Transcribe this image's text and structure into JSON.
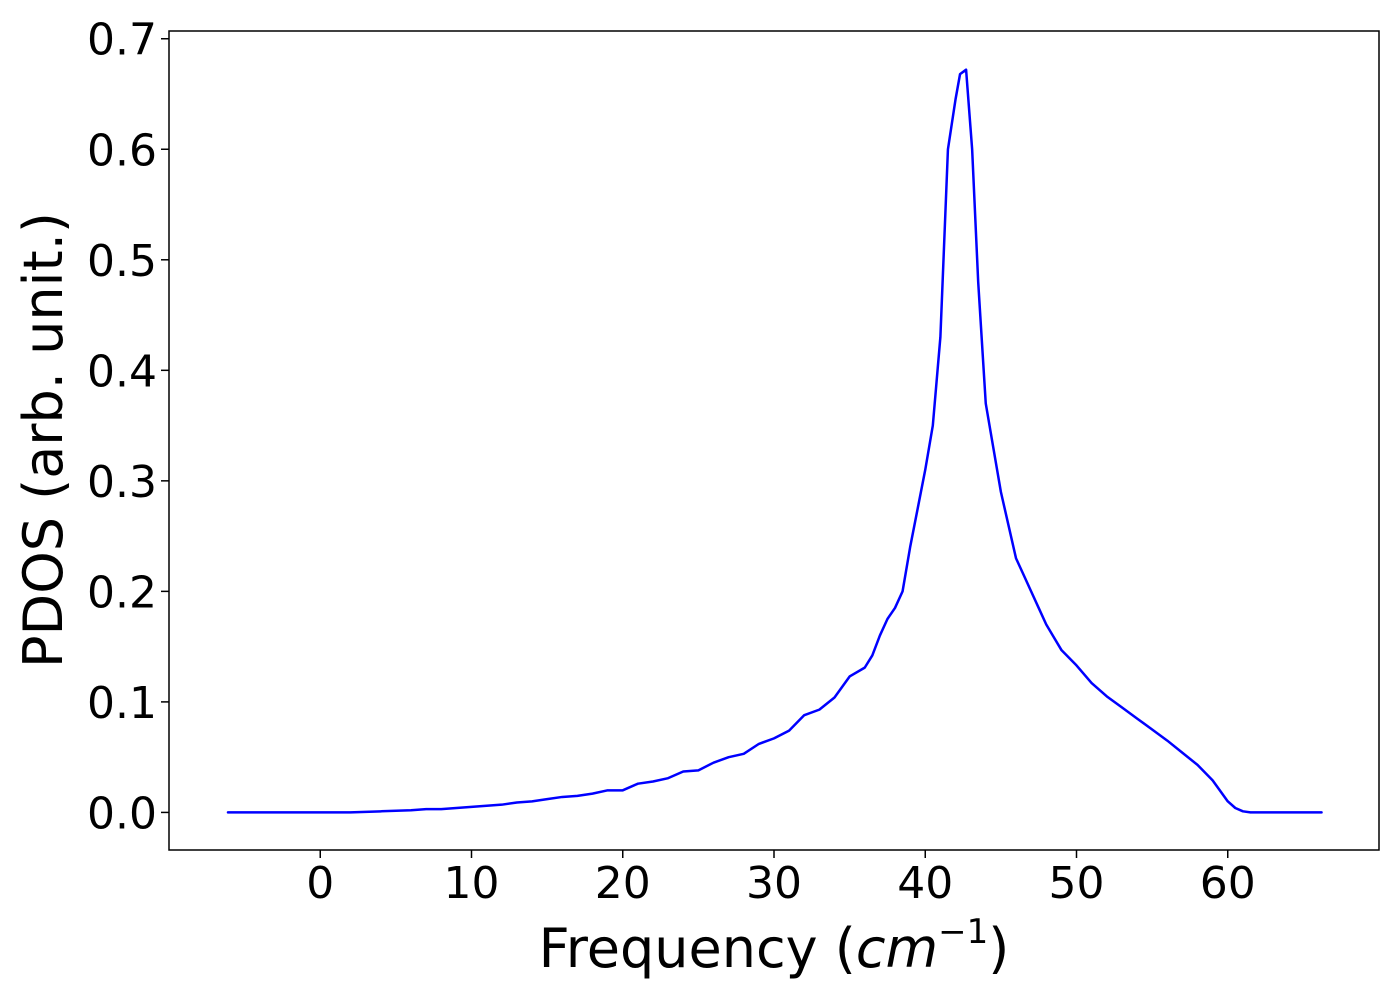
{
  "chart_data": {
    "type": "line",
    "title": "",
    "xlabel_main": "Frequency (",
    "xlabel_math": "cm",
    "xlabel_sup": "−1",
    "xlabel_close": ")",
    "ylabel": "PDOS (arb. unit.)",
    "xlim": [
      -10,
      70
    ],
    "ylim": [
      -0.034,
      0.707
    ],
    "xticks": [
      0,
      10,
      20,
      30,
      40,
      50,
      60
    ],
    "xtick_labels": [
      "0",
      "10",
      "20",
      "30",
      "40",
      "50",
      "60"
    ],
    "yticks": [
      0.0,
      0.1,
      0.2,
      0.3,
      0.4,
      0.5,
      0.6,
      0.7
    ],
    "ytick_labels": [
      "0.0",
      "0.1",
      "0.2",
      "0.3",
      "0.4",
      "0.5",
      "0.6",
      "0.7"
    ],
    "grid": false,
    "series": [
      {
        "color": "#0000ff",
        "x": [
          -6.1,
          0,
          2,
          4,
          6,
          7,
          8,
          9,
          10,
          11,
          12,
          13,
          14,
          15,
          16,
          17,
          18,
          19,
          20,
          21,
          22,
          23,
          24,
          25,
          26,
          27,
          28,
          29,
          30,
          31,
          32,
          33,
          34,
          35,
          36,
          36.5,
          37,
          37.5,
          38,
          38.5,
          39,
          39.5,
          40,
          40.5,
          41,
          41.5,
          42,
          42.3,
          42.7,
          43.1,
          43.5,
          44,
          44.5,
          45,
          45.5,
          46,
          46.5,
          47,
          47.5,
          48,
          49,
          50,
          51,
          52,
          53,
          54,
          55,
          56,
          57,
          58,
          59,
          60,
          60.5,
          61,
          61.5,
          62,
          63,
          66.2
        ],
        "y": [
          0.0,
          0.0,
          0.0,
          0.001,
          0.002,
          0.003,
          0.003,
          0.004,
          0.005,
          0.006,
          0.007,
          0.009,
          0.01,
          0.012,
          0.014,
          0.015,
          0.017,
          0.02,
          0.02,
          0.026,
          0.028,
          0.031,
          0.037,
          0.038,
          0.045,
          0.05,
          0.053,
          0.062,
          0.067,
          0.074,
          0.088,
          0.093,
          0.104,
          0.123,
          0.131,
          0.142,
          0.16,
          0.175,
          0.185,
          0.2,
          0.24,
          0.275,
          0.31,
          0.35,
          0.43,
          0.6,
          0.645,
          0.668,
          0.672,
          0.6,
          0.48,
          0.37,
          0.33,
          0.29,
          0.26,
          0.23,
          0.215,
          0.2,
          0.185,
          0.17,
          0.147,
          0.133,
          0.117,
          0.105,
          0.095,
          0.085,
          0.075,
          0.065,
          0.054,
          0.043,
          0.029,
          0.01,
          0.004,
          0.001,
          0.0,
          0.0,
          0.0,
          0.0
        ]
      }
    ]
  }
}
